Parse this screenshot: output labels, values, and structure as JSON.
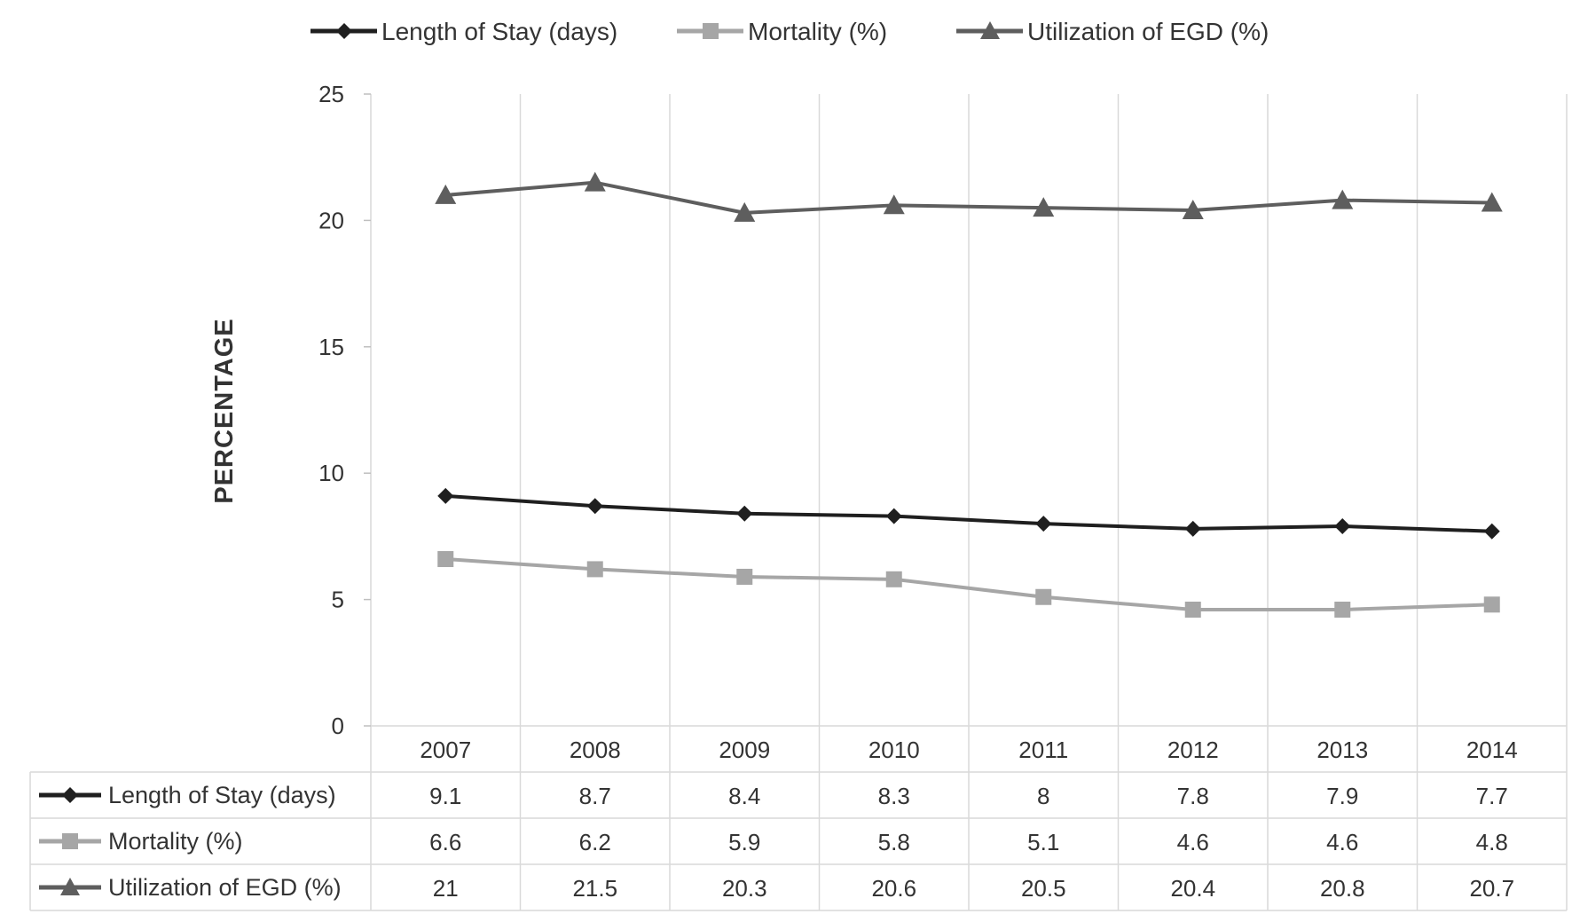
{
  "chart_data": {
    "type": "line",
    "title": "",
    "xlabel": "",
    "ylabel": "PERCENTAGE",
    "ylim": [
      0,
      25
    ],
    "yticks": [
      0,
      5,
      10,
      15,
      20,
      25
    ],
    "grid": "vertical",
    "legend_position": "top",
    "categories": [
      "2007",
      "2008",
      "2009",
      "2010",
      "2011",
      "2012",
      "2013",
      "2014"
    ],
    "series": [
      {
        "name": "Length of Stay (days)",
        "color": "#1f1f1f",
        "marker": "diamond",
        "values": [
          9.1,
          8.7,
          8.4,
          8.3,
          8,
          7.8,
          7.9,
          7.7
        ]
      },
      {
        "name": "Mortality (%)",
        "color": "#a6a6a6",
        "marker": "square",
        "values": [
          6.6,
          6.2,
          5.9,
          5.8,
          5.1,
          4.6,
          4.6,
          4.8
        ]
      },
      {
        "name": "Utilization of EGD (%)",
        "color": "#5e5e5e",
        "marker": "triangle",
        "values": [
          21,
          21.5,
          20.3,
          20.6,
          20.5,
          20.4,
          20.8,
          20.7
        ]
      }
    ],
    "data_table": true
  }
}
